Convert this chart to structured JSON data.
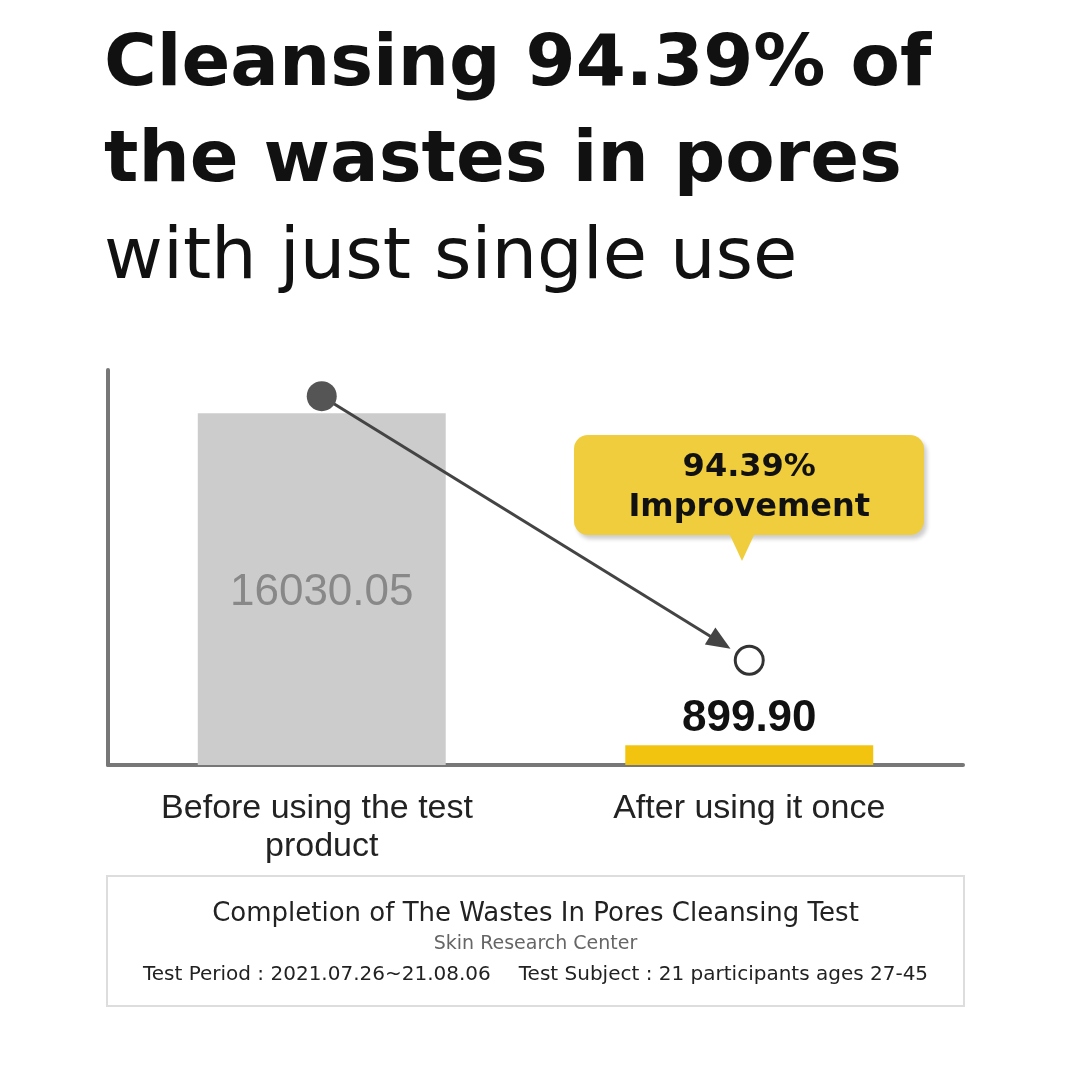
{
  "chart_data": {
    "type": "bar",
    "title": "Cleansing 94.39% of the wastes in pores",
    "subtitle": "with just single use",
    "categories": [
      "Before using the test product",
      "After using it once"
    ],
    "values": [
      16030.05,
      899.9
    ],
    "colors": [
      "#cccccc",
      "#f2c40f"
    ],
    "value_labels": [
      "16030.05",
      "899.90"
    ],
    "annotations": [
      "94.39% Improvement",
      "Completion of The Wastes In Pores Cleansing Test",
      "Skin Research Center",
      "Test Period : 2021.07.26~21.08.06",
      "Test Subject : 21 participants ages 27-45"
    ],
    "relative": false,
    "grid": false
  }
}
